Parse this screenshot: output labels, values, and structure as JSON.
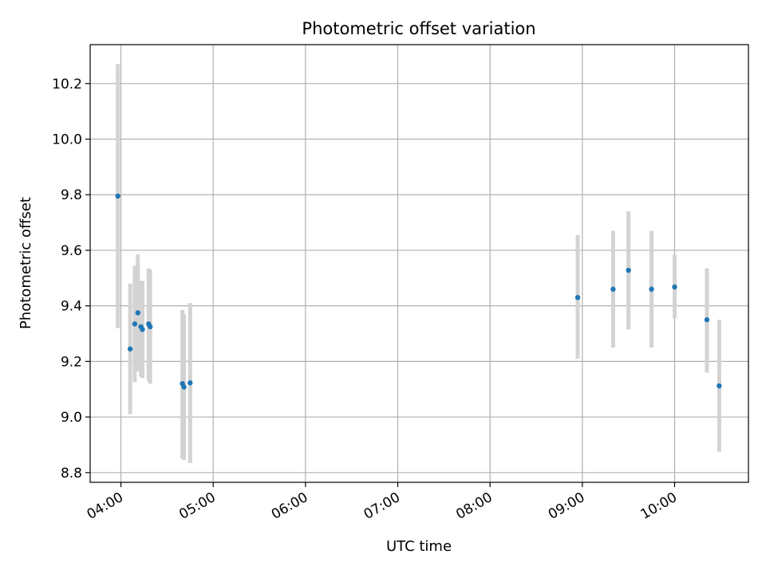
{
  "chart_data": {
    "type": "scatter",
    "title": "Photometric offset variation",
    "xlabel": "UTC time",
    "ylabel": "Photometric offset",
    "xlim": [
      "03:40",
      "10:48"
    ],
    "ylim": [
      8.765,
      10.34
    ],
    "x_ticks": [
      "04:00",
      "05:00",
      "06:00",
      "07:00",
      "08:00",
      "09:00",
      "10:00"
    ],
    "y_ticks": [
      8.8,
      9.0,
      9.2,
      9.4,
      9.6,
      9.8,
      10.0,
      10.2
    ],
    "grid": true,
    "legend": "none",
    "colors": {
      "point": "#1f77b4",
      "errorbar": "#d3d3d3",
      "grid": "#b0b0b0",
      "axes": "#000000"
    },
    "points": [
      {
        "time": "03:58",
        "y": 9.795,
        "yerr_low": 9.32,
        "yerr_high": 10.27
      },
      {
        "time": "04:06",
        "y": 9.245,
        "yerr_low": 9.01,
        "yerr_high": 9.48
      },
      {
        "time": "04:09",
        "y": 9.335,
        "yerr_low": 9.125,
        "yerr_high": 9.545
      },
      {
        "time": "04:11",
        "y": 9.375,
        "yerr_low": 9.165,
        "yerr_high": 9.585
      },
      {
        "time": "04:13",
        "y": 9.325,
        "yerr_low": 9.145,
        "yerr_high": 9.49
      },
      {
        "time": "04:14",
        "y": 9.315,
        "yerr_low": 9.14,
        "yerr_high": 9.49
      },
      {
        "time": "04:18",
        "y": 9.335,
        "yerr_low": 9.13,
        "yerr_high": 9.535
      },
      {
        "time": "04:19",
        "y": 9.325,
        "yerr_low": 9.12,
        "yerr_high": 9.53
      },
      {
        "time": "04:40",
        "y": 9.12,
        "yerr_low": 8.85,
        "yerr_high": 9.385
      },
      {
        "time": "04:41",
        "y": 9.108,
        "yerr_low": 8.845,
        "yerr_high": 9.37
      },
      {
        "time": "04:45",
        "y": 9.123,
        "yerr_low": 8.835,
        "yerr_high": 9.41
      },
      {
        "time": "08:57",
        "y": 9.43,
        "yerr_low": 9.21,
        "yerr_high": 9.655
      },
      {
        "time": "09:20",
        "y": 9.46,
        "yerr_low": 9.25,
        "yerr_high": 9.67
      },
      {
        "time": "09:30",
        "y": 9.528,
        "yerr_low": 9.315,
        "yerr_high": 9.74
      },
      {
        "time": "09:45",
        "y": 9.46,
        "yerr_low": 9.25,
        "yerr_high": 9.67
      },
      {
        "time": "10:00",
        "y": 9.468,
        "yerr_low": 9.355,
        "yerr_high": 9.585
      },
      {
        "time": "10:21",
        "y": 9.35,
        "yerr_low": 9.16,
        "yerr_high": 9.535
      },
      {
        "time": "10:29",
        "y": 9.112,
        "yerr_low": 8.875,
        "yerr_high": 9.35
      }
    ]
  }
}
